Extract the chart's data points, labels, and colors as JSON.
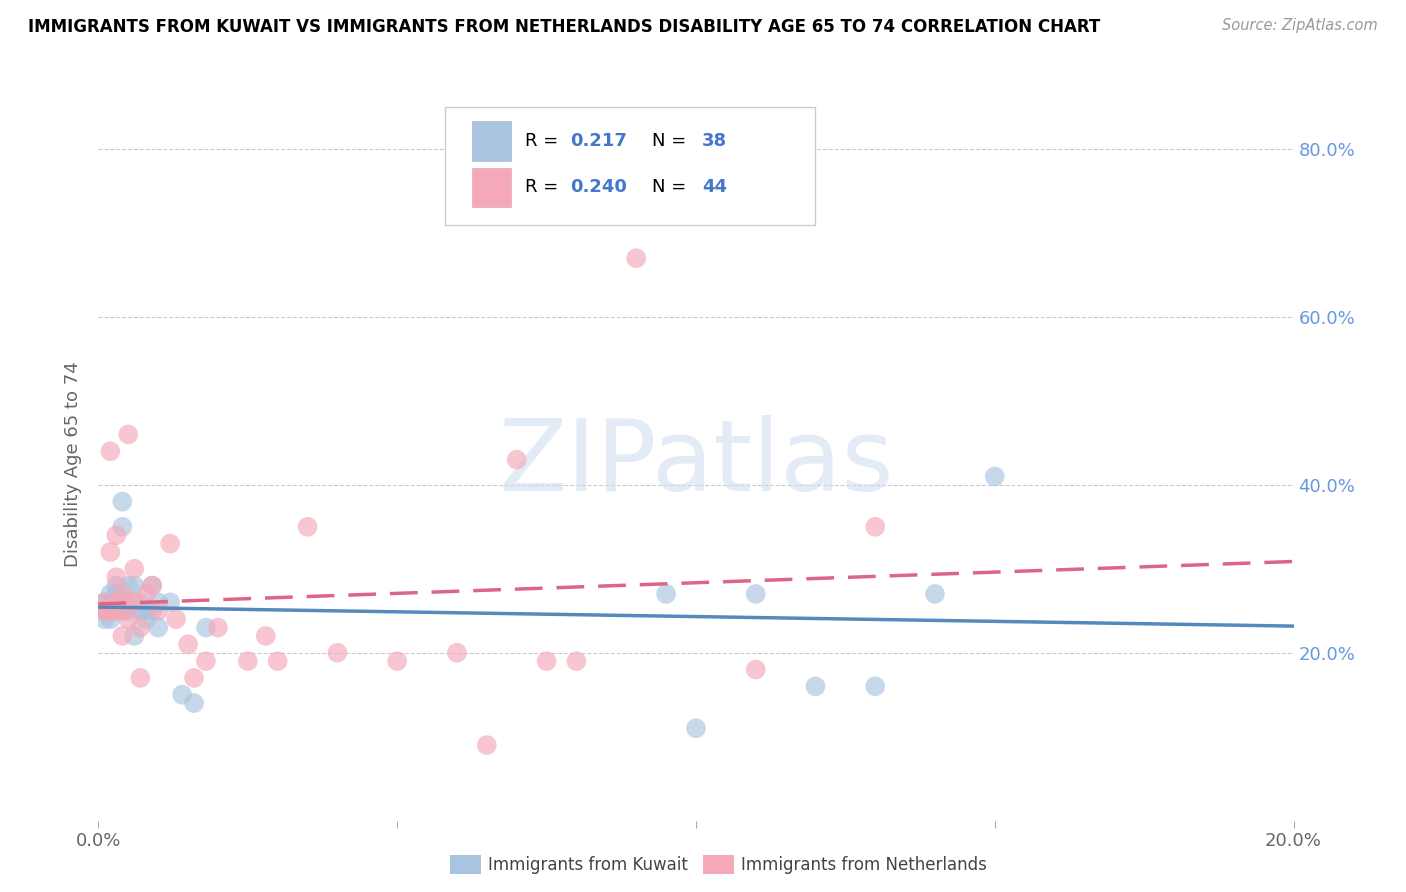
{
  "title": "IMMIGRANTS FROM KUWAIT VS IMMIGRANTS FROM NETHERLANDS DISABILITY AGE 65 TO 74 CORRELATION CHART",
  "source": "Source: ZipAtlas.com",
  "ylabel": "Disability Age 65 to 74",
  "xlim": [
    0.0,
    0.2
  ],
  "ylim": [
    0.0,
    0.85
  ],
  "legend1_R": "0.217",
  "legend1_N": "38",
  "legend2_R": "0.240",
  "legend2_N": "44",
  "color_kuwait": "#a8c4e0",
  "color_netherlands": "#f4a8b8",
  "color_line_kuwait": "#5588bb",
  "color_line_netherlands": "#dd6688",
  "watermark": "ZIPatlas",
  "series_kuwait_x": [
    0.001,
    0.001,
    0.001,
    0.002,
    0.002,
    0.002,
    0.002,
    0.003,
    0.003,
    0.003,
    0.003,
    0.004,
    0.004,
    0.004,
    0.005,
    0.005,
    0.005,
    0.006,
    0.006,
    0.007,
    0.007,
    0.008,
    0.008,
    0.009,
    0.009,
    0.01,
    0.01,
    0.012,
    0.014,
    0.016,
    0.018,
    0.095,
    0.11,
    0.12,
    0.13,
    0.14,
    0.15,
    0.1
  ],
  "series_kuwait_y": [
    0.24,
    0.25,
    0.26,
    0.25,
    0.26,
    0.27,
    0.24,
    0.25,
    0.27,
    0.28,
    0.26,
    0.35,
    0.38,
    0.25,
    0.26,
    0.25,
    0.28,
    0.28,
    0.22,
    0.25,
    0.26,
    0.25,
    0.24,
    0.28,
    0.25,
    0.26,
    0.23,
    0.26,
    0.15,
    0.14,
    0.23,
    0.27,
    0.27,
    0.16,
    0.16,
    0.27,
    0.41,
    0.11
  ],
  "series_netherlands_x": [
    0.001,
    0.001,
    0.001,
    0.002,
    0.002,
    0.002,
    0.002,
    0.003,
    0.003,
    0.003,
    0.003,
    0.004,
    0.004,
    0.004,
    0.005,
    0.005,
    0.005,
    0.006,
    0.006,
    0.007,
    0.007,
    0.008,
    0.009,
    0.01,
    0.012,
    0.013,
    0.015,
    0.016,
    0.018,
    0.02,
    0.025,
    0.028,
    0.03,
    0.035,
    0.04,
    0.05,
    0.06,
    0.065,
    0.07,
    0.075,
    0.08,
    0.09,
    0.11,
    0.13
  ],
  "series_netherlands_y": [
    0.25,
    0.26,
    0.25,
    0.32,
    0.25,
    0.44,
    0.25,
    0.34,
    0.26,
    0.25,
    0.29,
    0.27,
    0.25,
    0.22,
    0.46,
    0.26,
    0.24,
    0.3,
    0.26,
    0.23,
    0.17,
    0.27,
    0.28,
    0.25,
    0.33,
    0.24,
    0.21,
    0.17,
    0.19,
    0.23,
    0.19,
    0.22,
    0.19,
    0.35,
    0.2,
    0.19,
    0.2,
    0.09,
    0.43,
    0.19,
    0.19,
    0.67,
    0.18,
    0.35
  ],
  "yticks": [
    0.0,
    0.2,
    0.4,
    0.6,
    0.8
  ],
  "ytick_labels_right": [
    "",
    "20.0%",
    "40.0%",
    "60.0%",
    "80.0%"
  ],
  "xticks": [
    0.0,
    0.05,
    0.1,
    0.15,
    0.2
  ],
  "xtick_labels": [
    "0.0%",
    "",
    "",
    "",
    "20.0%"
  ]
}
